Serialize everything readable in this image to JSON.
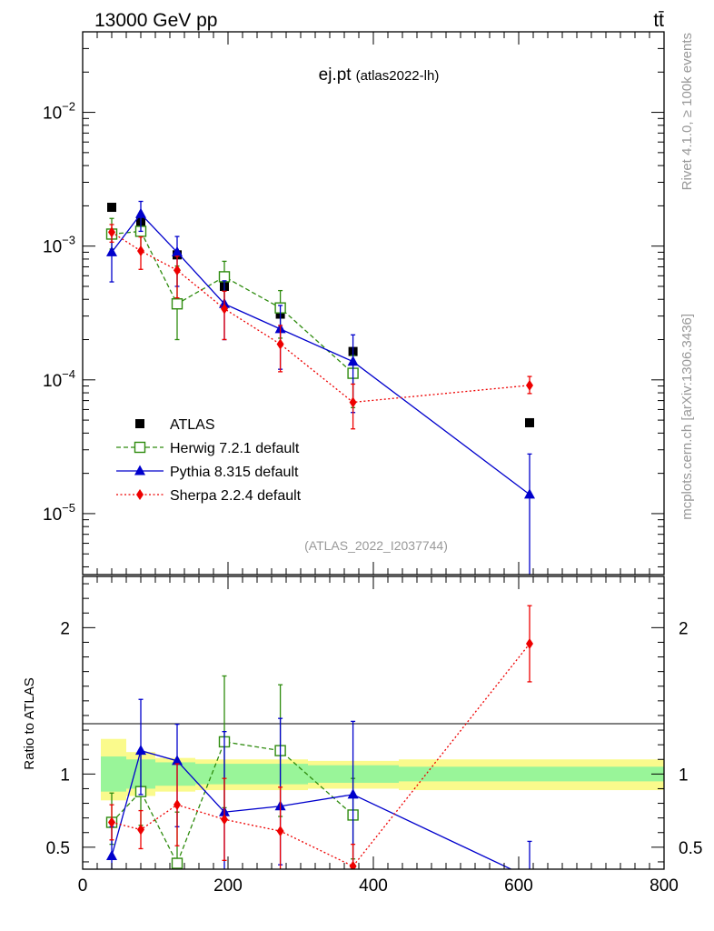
{
  "header": {
    "energy_label": "13000 GeV pp",
    "process_label": "tt̄"
  },
  "side_labels": {
    "rivet": "Rivet 4.1.0, ≥ 100k events",
    "mcplots": "mcplots.cern.ch [arXiv:1306.3436]"
  },
  "chart_data": [
    {
      "id": "main",
      "type": "scatter",
      "title": "ej.pt",
      "subtitle": "(atlas2022-lh)",
      "watermark": "(ATLAS_2022_I2037744)",
      "yscale": "log",
      "xlim": [
        0,
        800
      ],
      "ylim": [
        3.5e-06,
        0.04
      ],
      "ytick_values": [
        1e-05,
        0.0001,
        0.001,
        0.01
      ],
      "ytick_labels": [
        {
          "base": "10",
          "exp": "−5"
        },
        {
          "base": "10",
          "exp": "−4"
        },
        {
          "base": "10",
          "exp": "−3"
        },
        {
          "base": "10",
          "exp": "−2"
        }
      ],
      "legend_position": "lower-left",
      "series": [
        {
          "name": "ATLAS",
          "color": "#000000",
          "marker": "filled-square",
          "line": "none",
          "x": [
            40,
            80,
            130,
            195,
            272,
            372,
            615
          ],
          "y": [
            0.00195,
            0.00152,
            0.00086,
            0.0005,
            0.00031,
            0.000163,
            4.78e-05
          ]
        },
        {
          "name": "Herwig 7.2.1 default",
          "color": "#2e8b0e",
          "marker": "open-square",
          "line": "dashed",
          "x": [
            40,
            80,
            130,
            195,
            272,
            372
          ],
          "y": [
            0.00123,
            0.00129,
            0.00037,
            0.00059,
            0.000345,
            0.000112
          ],
          "yerr_low": [
            0.00028,
            0.00035,
            0.00017,
            0.00022,
            0.00014,
            5e-05
          ],
          "yerr_high": [
            0.00038,
            0.0004,
            0.00034,
            0.00018,
            0.00012,
            4e-05
          ]
        },
        {
          "name": "Pythia 8.315 default",
          "color": "#0000cc",
          "marker": "filled-triangle",
          "line": "solid",
          "x": [
            40,
            80,
            130,
            195,
            272,
            372,
            615
          ],
          "y": [
            0.0009,
            0.00174,
            0.0009,
            0.00037,
            0.00024,
            0.000137,
            1.39e-05
          ],
          "yerr_low": [
            0.00036,
            0.00045,
            0.0004,
            0.00017,
            0.00012,
            8e-05,
            1.1e-05
          ],
          "yerr_high": [
            0.0004,
            0.00042,
            0.00028,
            0.00018,
            0.00012,
            8e-05,
            1.4e-05
          ]
        },
        {
          "name": "Sherpa 2.2.4 default",
          "color": "#ee0000",
          "marker": "filled-diamond",
          "line": "dotted",
          "x": [
            40,
            80,
            130,
            195,
            272,
            372,
            615
          ],
          "y": [
            0.00127,
            0.00092,
            0.00066,
            0.00034,
            0.000185,
            6.8e-05,
            9.1e-05
          ],
          "yerr_low": [
            0.0002,
            0.00025,
            0.00025,
            0.00014,
            7e-05,
            2.5e-05,
            1.2e-05
          ],
          "yerr_high": [
            0.00018,
            0.00025,
            0.00018,
            0.00012,
            7e-05,
            2.5e-05,
            1.5e-05
          ]
        }
      ]
    },
    {
      "id": "ratio",
      "type": "scatter",
      "ylabel": "Ratio to ATLAS",
      "xlim": [
        0,
        800
      ],
      "ylim": [
        0.35,
        2.35
      ],
      "xtick_values": [
        0,
        200,
        400,
        600,
        800
      ],
      "xtick_labels": [
        "0",
        "200",
        "400",
        "600",
        "800"
      ],
      "ytick_values": [
        0.5,
        1,
        2
      ],
      "ytick_labels": [
        "0.5",
        "1",
        "2"
      ],
      "uncertainty_bands": {
        "bin_edges": [
          25,
          60,
          100,
          155,
          235,
          310,
          435,
          800
        ],
        "inner_low": [
          0.88,
          0.9,
          0.92,
          0.93,
          0.93,
          0.94,
          0.95
        ],
        "inner_high": [
          1.12,
          1.1,
          1.08,
          1.07,
          1.07,
          1.06,
          1.05
        ],
        "outer_low": [
          0.82,
          0.85,
          0.88,
          0.89,
          0.89,
          0.9,
          0.89
        ],
        "outer_high": [
          1.24,
          1.15,
          1.11,
          1.1,
          1.1,
          1.09,
          1.1
        ],
        "inner_color": "#99f599",
        "outer_color": "#fafa8c"
      },
      "series": [
        {
          "name": "Herwig 7.2.1 default",
          "color": "#2e8b0e",
          "marker": "open-square",
          "line": "dashed",
          "x": [
            40,
            80,
            130,
            195,
            272,
            372
          ],
          "y": [
            0.67,
            0.88,
            0.39,
            1.22,
            1.16,
            0.72
          ],
          "yerr_low": [
            0.15,
            0.23,
            0.3,
            0.45,
            0.45,
            0.3
          ],
          "yerr_high": [
            0.2,
            0.26,
            0.35,
            0.45,
            0.45,
            0.25
          ]
        },
        {
          "name": "Pythia 8.315 default",
          "color": "#0000cc",
          "marker": "filled-triangle",
          "line": "solid",
          "x": [
            40,
            80,
            130,
            195,
            272,
            372,
            615
          ],
          "y": [
            0.44,
            1.16,
            1.09,
            0.74,
            0.78,
            0.86,
            0.29
          ],
          "yerr_low": [
            0.2,
            0.3,
            0.45,
            0.4,
            0.4,
            0.5,
            0.25
          ],
          "yerr_high": [
            0.2,
            0.35,
            0.25,
            0.55,
            0.6,
            0.5,
            0.25
          ]
        },
        {
          "name": "Sherpa 2.2.4 default",
          "color": "#ee0000",
          "marker": "filled-diamond",
          "line": "dotted",
          "x": [
            40,
            80,
            130,
            195,
            272,
            372,
            615
          ],
          "y": [
            0.67,
            0.62,
            0.79,
            0.69,
            0.61,
            0.37,
            1.89
          ],
          "yerr_low": [
            0.12,
            0.13,
            0.28,
            0.28,
            0.3,
            0.15,
            0.26
          ],
          "yerr_high": [
            0.12,
            0.13,
            0.28,
            0.28,
            0.3,
            0.15,
            0.26
          ]
        }
      ]
    }
  ]
}
